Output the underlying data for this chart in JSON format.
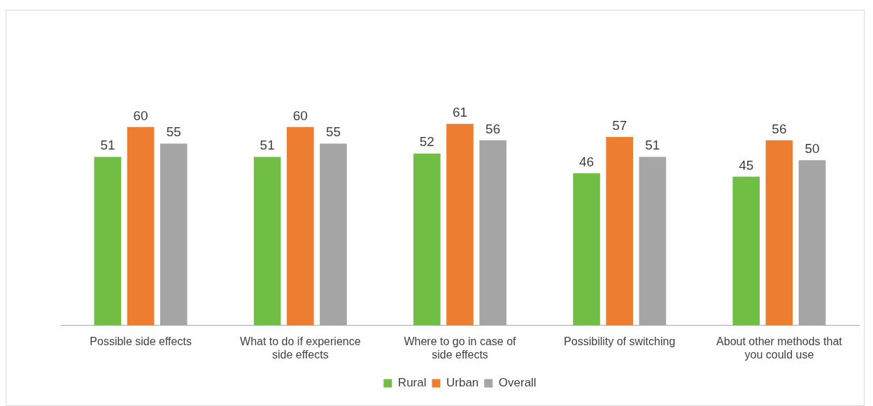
{
  "chart_data": {
    "type": "bar",
    "categories": [
      "Possible side effects",
      "What to do if experience side effects",
      "Where to go in case of side effects",
      "Possibility of switching",
      "About other methods that you could use"
    ],
    "series": [
      {
        "name": "Rural",
        "color": "#70bf44",
        "values": [
          51,
          51,
          52,
          46,
          45
        ]
      },
      {
        "name": "Urban",
        "color": "#ed7d31",
        "values": [
          60,
          60,
          61,
          57,
          56
        ]
      },
      {
        "name": "Overall",
        "color": "#a5a5a5",
        "values": [
          55,
          55,
          56,
          51,
          50
        ]
      }
    ],
    "data_labels": true,
    "legend": "bottom",
    "grid": false
  }
}
